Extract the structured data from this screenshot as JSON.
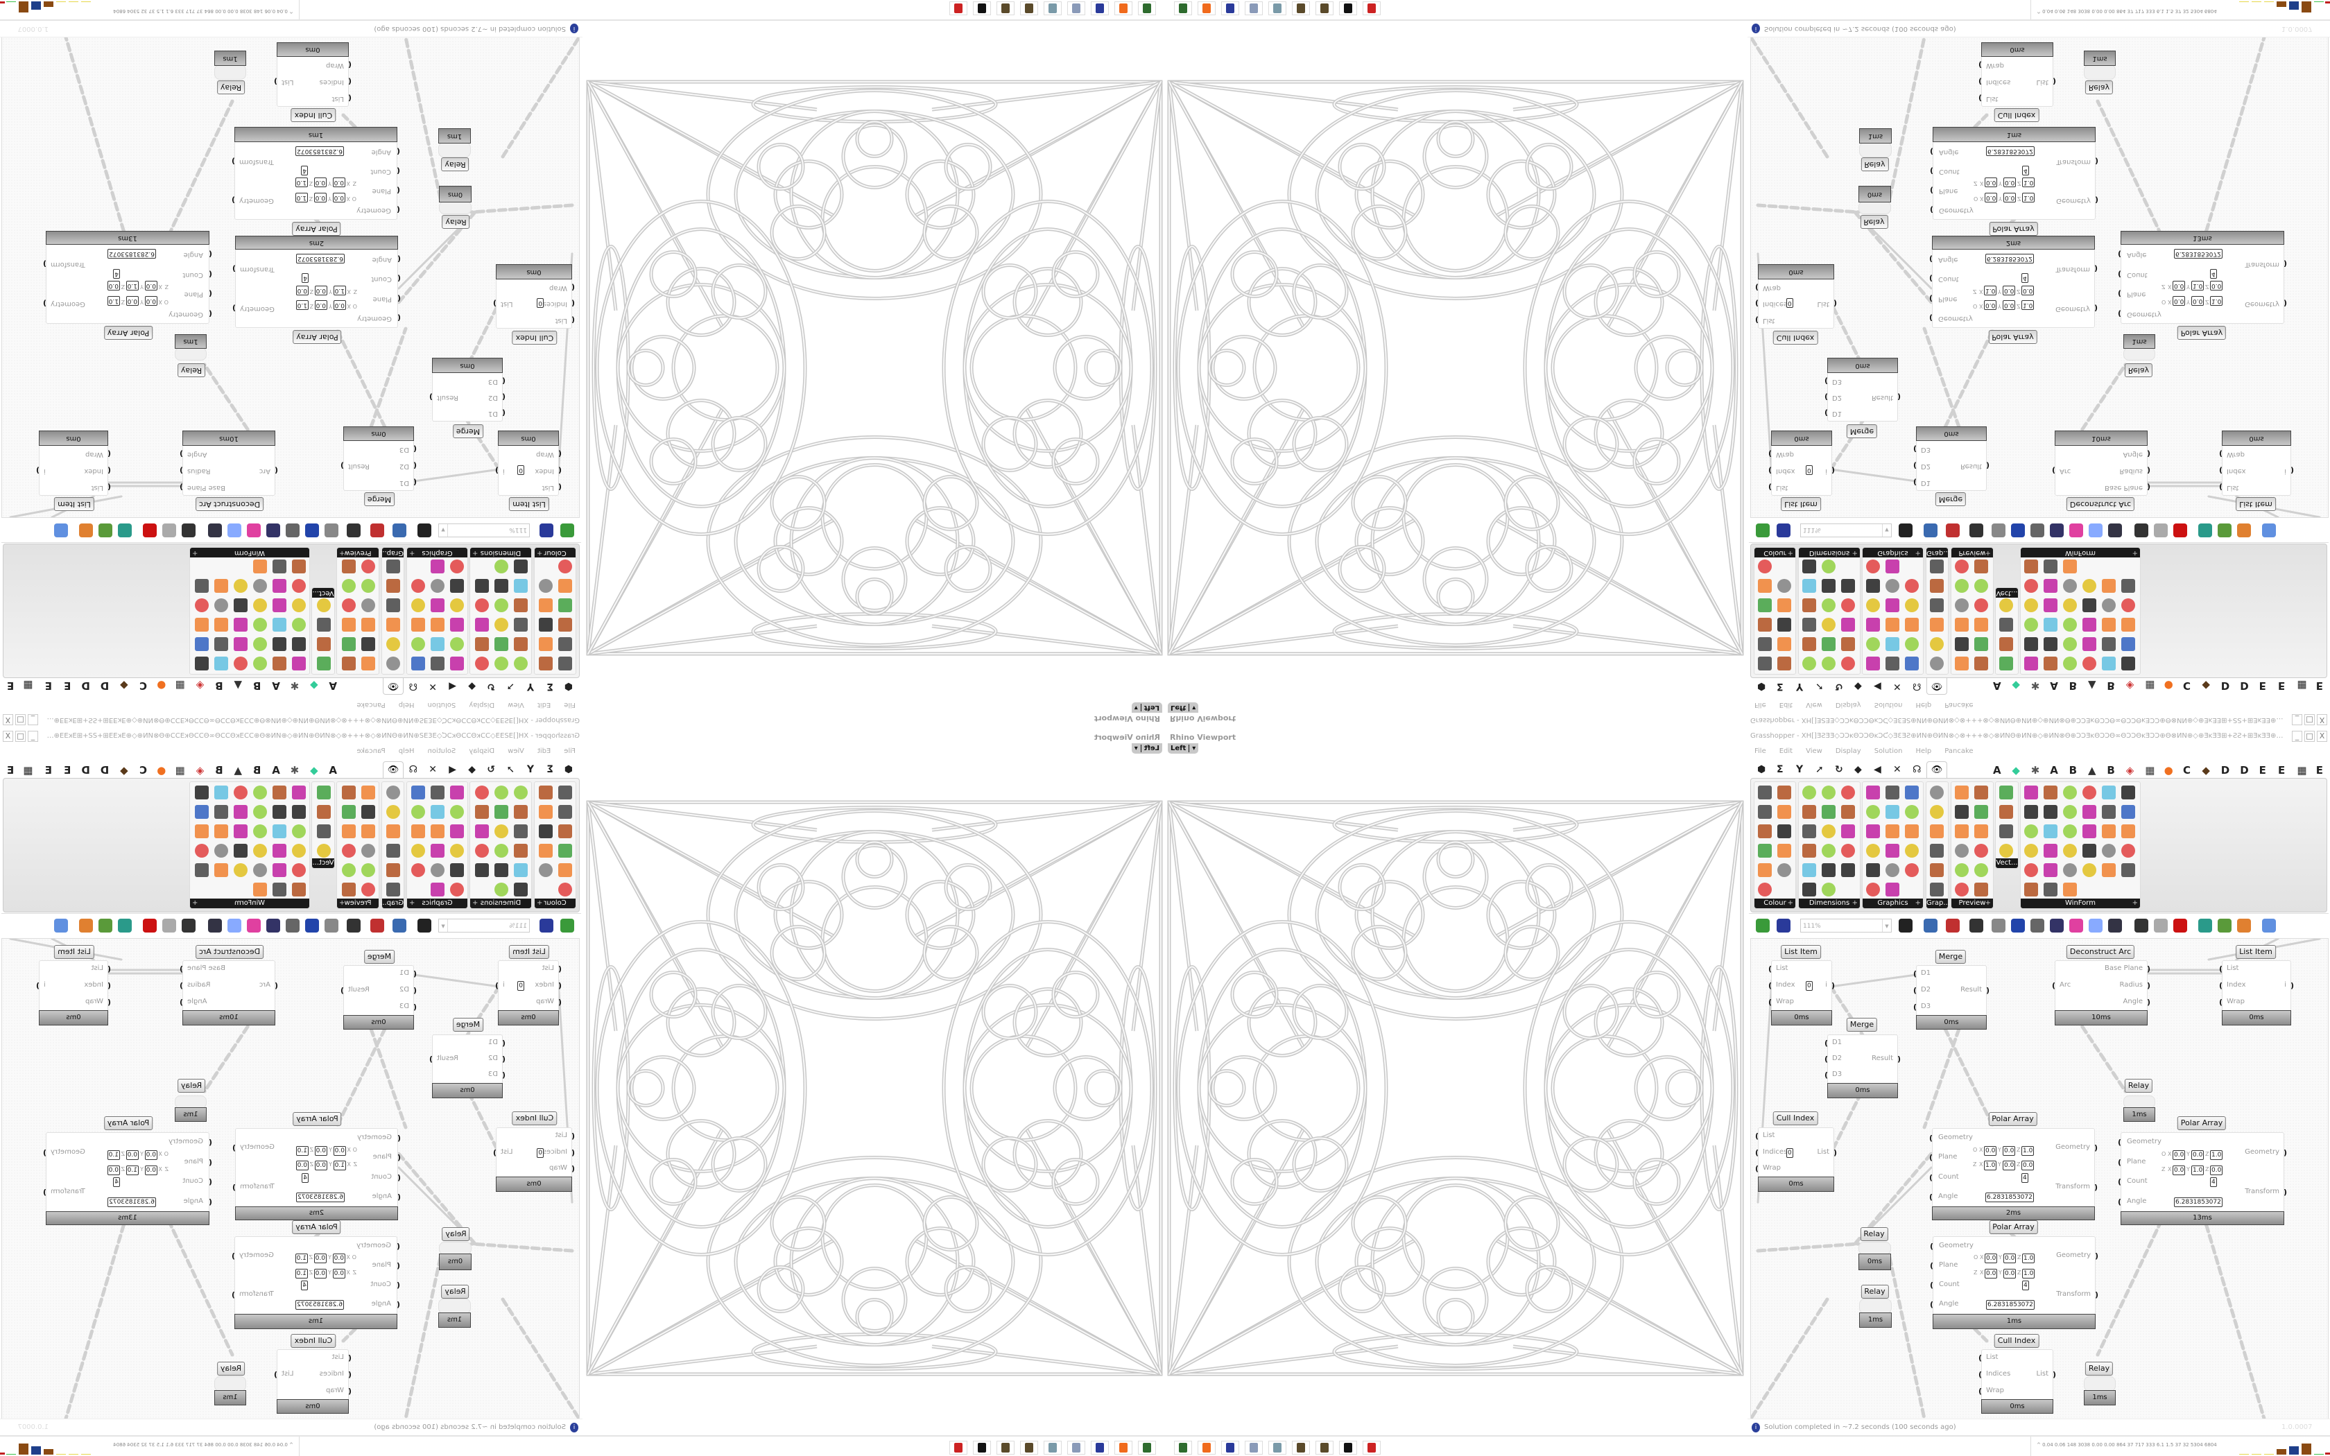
{
  "viewport": {
    "title": "Rhino Viewport",
    "view_label": "Left"
  },
  "grasshopper": {
    "title": "Grasshopper - XH[]ƎƧƎƎ◇ƆƆᴋΘƆƆΘᴋƆƇ◇ƎƐƎƧ⊕ИΝ⊕ΘИΝ⊗◇⊗+++⊗◇⊗ИΝΘ⊕ИΝ⊕◇⊕ИΝ⊗Θ⊕ƆƆƎᴋΘƆƆΘ∞ΘƆƆΘᴋƎƆƆ⊕Θ⊗ИΝ⊕◇⊕ƎᴋƎƎ⊞+ƧƧ+⊞ƎᴋƎƎ⊕◇+ᴋƆƆƎƎ⊞+ƆƆ",
    "window_controls": {
      "minimize": "_",
      "maximize": "□",
      "close": "X"
    },
    "menu": [
      "File",
      "Edit",
      "View",
      "Display",
      "Solution",
      "Help",
      "Pancake"
    ],
    "tab_icons": [
      "⬢",
      "Σ",
      "Y",
      "➚",
      "↻",
      "◆",
      "◀",
      "✕",
      "☊"
    ],
    "active_tab_icon": "eye-icon",
    "tab_letters": [
      "A",
      "◆",
      "✱",
      "A",
      "B",
      "▲",
      "B",
      "◈",
      "▦",
      "●",
      "C",
      "◆",
      "D",
      "D",
      "E",
      "E",
      "▦",
      "E"
    ],
    "panels": [
      {
        "label": "Colour",
        "plus": "+"
      },
      {
        "label": "Dimensions",
        "plus": "+"
      },
      {
        "label": "Graphics",
        "plus": "+"
      },
      {
        "label": "Grap...",
        "plus": ""
      },
      {
        "label": "Preview",
        "plus": "+"
      },
      {
        "label": "Vect...",
        "plus": ""
      },
      {
        "label": "WinForm",
        "plus": "+"
      }
    ],
    "zoom": "111%",
    "components": [
      {
        "title": "List Item",
        "inputs": [
          "List",
          "Index",
          "Wrap"
        ],
        "outputs": [
          "i"
        ],
        "time": "0ms",
        "value": "0"
      },
      {
        "title": "Merge",
        "inputs": [
          "D1",
          "D2",
          "D3"
        ],
        "outputs": [
          "Result"
        ],
        "time": "0ms"
      },
      {
        "title": "Deconstruct Arc",
        "inputs": [
          "Arc"
        ],
        "outputs": [
          "Base Plane",
          "Radius",
          "Angle"
        ],
        "time": "10ms"
      },
      {
        "title": "List Item",
        "inputs": [
          "List",
          "Index",
          "Wrap"
        ],
        "outputs": [
          "i"
        ],
        "time": "0ms"
      },
      {
        "title": "Merge",
        "inputs": [
          "D1",
          "D2",
          "D3"
        ],
        "outputs": [
          "Result"
        ],
        "time": "0ms"
      },
      {
        "title": "Relay",
        "inputs": [],
        "outputs": [],
        "time": "1ms"
      },
      {
        "title": "Cull Index",
        "inputs": [
          "List",
          "Indices",
          "Wrap"
        ],
        "outputs": [
          "List"
        ],
        "time": "0ms",
        "value": "0"
      },
      {
        "title": "Polar Array",
        "inputs": [
          "Geometry",
          "Plane",
          "Count",
          "Angle"
        ],
        "outputs": [
          "Geometry",
          "Transform"
        ],
        "time": "2ms",
        "plane_origin": [
          "0.0",
          "0.0",
          "1.0"
        ],
        "plane_z": [
          "1.0",
          "0.0",
          "0.0"
        ],
        "count": "4",
        "angle": "6.2831853072"
      },
      {
        "title": "Polar Array",
        "inputs": [
          "Geometry",
          "Plane",
          "Count",
          "Angle"
        ],
        "outputs": [
          "Geometry",
          "Transform"
        ],
        "time": "13ms",
        "plane_origin": [
          "0.0",
          "0.0",
          "1.0"
        ],
        "plane_z": [
          "0.0",
          "1.0",
          "0.0"
        ],
        "count": "4",
        "angle": "6.2831853072"
      },
      {
        "title": "Polar Array",
        "inputs": [
          "Geometry",
          "Plane",
          "Count",
          "Angle"
        ],
        "outputs": [
          "Geometry",
          "Transform"
        ],
        "time": "1ms",
        "plane_origin": [
          "0.0",
          "0.0",
          "1.0"
        ],
        "plane_z": [
          "0.0",
          "0.0",
          "1.0"
        ],
        "count": "4",
        "angle": "6.2831853072"
      },
      {
        "title": "Relay",
        "inputs": [],
        "outputs": [],
        "time": "0ms"
      },
      {
        "title": "Relay",
        "inputs": [],
        "outputs": [],
        "time": "1ms"
      },
      {
        "title": "Cull Index",
        "inputs": [
          "List",
          "Indices",
          "Wrap"
        ],
        "outputs": [
          "List"
        ],
        "time": "0ms"
      },
      {
        "title": "Relay",
        "inputs": [],
        "outputs": [],
        "time": "1ms"
      }
    ],
    "plane_labels": {
      "origin": "O",
      "z": "Z",
      "x": "X",
      "y": "Y",
      "zc": "Z"
    },
    "status": {
      "message": "Solution completed in ~7.2 seconds (100 seconds ago)",
      "version": "1.0.0007"
    }
  },
  "taskbar": {
    "icons": [
      "task-manager-icon",
      "firefox-icon",
      "floppy-64-icon",
      "document-icon",
      "notepad-icon",
      "rhino-icon",
      "rhino-icon",
      "grasshopper-icon",
      "antivirus-icon"
    ],
    "icon_colors": [
      "#2e6b2e",
      "#f06a1c",
      "#2a3a9a",
      "#8a9ab8",
      "#7a9aa8",
      "#5a4a2a",
      "#5a4a2a",
      "#111111",
      "#cc2222"
    ],
    "tray_caret": "^",
    "tray_stats": "0.04 0.06 148 3038 0.00 0.00 864 37 717 333 6.1 1.5 37 32 5304 6804"
  },
  "colors": {
    "wire": "#d0d0d0",
    "ms_bar": "#9a9a9a",
    "status_icon": "#2a3f9a",
    "geometry": "#cfcfcf"
  }
}
